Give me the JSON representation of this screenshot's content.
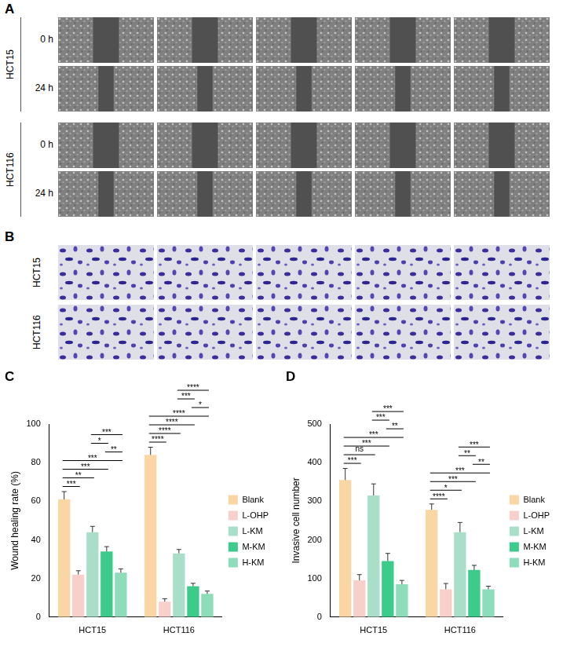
{
  "images": {
    "A": {
      "panel_label": "A",
      "groups": [
        {
          "label": "HCT15",
          "rows": [
            "0 h",
            "24 h"
          ]
        },
        {
          "label": "HCT116",
          "rows": [
            "0 h",
            "24 h"
          ]
        }
      ]
    },
    "B": {
      "panel_label": "B",
      "rows": [
        "HCT15",
        "HCT116"
      ]
    }
  },
  "chart_data": [
    {
      "type": "bar",
      "panel_label": "C",
      "y_label": "Wound healing rate (%)",
      "categories": [
        "HCT15",
        "HCT116"
      ],
      "series": [
        {
          "name": "Blank",
          "color": "#f9d6a3",
          "values": [
            61,
            84
          ],
          "errors": [
            4,
            4
          ]
        },
        {
          "name": "L-OHP",
          "color": "#f7d0cc",
          "values": [
            22,
            8
          ],
          "errors": [
            2,
            1.5
          ]
        },
        {
          "name": "L-KM",
          "color": "#a9dfc8",
          "values": [
            44,
            33
          ],
          "errors": [
            3,
            2
          ]
        },
        {
          "name": "M-KM",
          "color": "#3ccb8a",
          "values": [
            34,
            16
          ],
          "errors": [
            2.5,
            1.5
          ]
        },
        {
          "name": "H-KM",
          "color": "#8edcba",
          "values": [
            23,
            12
          ],
          "errors": [
            2,
            1.5
          ]
        }
      ],
      "ylim": [
        0,
        100
      ],
      "yticks": [
        0,
        20,
        40,
        60,
        80,
        100
      ],
      "grid": false,
      "legend": "right",
      "significance": [
        {
          "category": "HCT15",
          "from": "Blank",
          "to": "L-OHP",
          "label": "***"
        },
        {
          "category": "HCT15",
          "from": "Blank",
          "to": "L-KM",
          "label": "**"
        },
        {
          "category": "HCT15",
          "from": "Blank",
          "to": "M-KM",
          "label": "***"
        },
        {
          "category": "HCT15",
          "from": "Blank",
          "to": "H-KM",
          "label": "***"
        },
        {
          "category": "HCT15",
          "from": "M-KM",
          "to": "H-KM",
          "label": "**"
        },
        {
          "category": "HCT15",
          "from": "L-KM",
          "to": "M-KM",
          "label": "*"
        },
        {
          "category": "HCT15",
          "from": "L-KM",
          "to": "H-KM",
          "label": "***"
        },
        {
          "category": "HCT116",
          "from": "Blank",
          "to": "L-OHP",
          "label": "****"
        },
        {
          "category": "HCT116",
          "from": "Blank",
          "to": "L-KM",
          "label": "****"
        },
        {
          "category": "HCT116",
          "from": "Blank",
          "to": "M-KM",
          "label": "****"
        },
        {
          "category": "HCT116",
          "from": "Blank",
          "to": "H-KM",
          "label": "****"
        },
        {
          "category": "HCT116",
          "from": "M-KM",
          "to": "H-KM",
          "label": "*"
        },
        {
          "category": "HCT116",
          "from": "L-KM",
          "to": "M-KM",
          "label": "***"
        },
        {
          "category": "HCT116",
          "from": "L-KM",
          "to": "H-KM",
          "label": "****"
        }
      ]
    },
    {
      "type": "bar",
      "panel_label": "D",
      "y_label": "Invasive cell number",
      "categories": [
        "HCT15",
        "HCT116"
      ],
      "series": [
        {
          "name": "Blank",
          "color": "#f9d6a3",
          "values": [
            355,
            278
          ],
          "errors": [
            30,
            15
          ]
        },
        {
          "name": "L-OHP",
          "color": "#f7d0cc",
          "values": [
            95,
            72
          ],
          "errors": [
            15,
            15
          ]
        },
        {
          "name": "L-KM",
          "color": "#a9dfc8",
          "values": [
            315,
            220
          ],
          "errors": [
            30,
            25
          ]
        },
        {
          "name": "M-KM",
          "color": "#3ccb8a",
          "values": [
            145,
            122
          ],
          "errors": [
            20,
            12
          ]
        },
        {
          "name": "H-KM",
          "color": "#8edcba",
          "values": [
            85,
            72
          ],
          "errors": [
            10,
            8
          ]
        }
      ],
      "ylim": [
        0,
        500
      ],
      "yticks": [
        0,
        100,
        200,
        300,
        400,
        500
      ],
      "grid": false,
      "legend": "right",
      "significance": [
        {
          "category": "HCT15",
          "from": "Blank",
          "to": "L-OHP",
          "label": "***"
        },
        {
          "category": "HCT15",
          "from": "Blank",
          "to": "L-KM",
          "label": "ns"
        },
        {
          "category": "HCT15",
          "from": "Blank",
          "to": "M-KM",
          "label": "***"
        },
        {
          "category": "HCT15",
          "from": "Blank",
          "to": "H-KM",
          "label": "***"
        },
        {
          "category": "HCT15",
          "from": "M-KM",
          "to": "H-KM",
          "label": "**"
        },
        {
          "category": "HCT15",
          "from": "L-KM",
          "to": "M-KM",
          "label": "***"
        },
        {
          "category": "HCT15",
          "from": "L-KM",
          "to": "H-KM",
          "label": "***"
        },
        {
          "category": "HCT116",
          "from": "Blank",
          "to": "L-OHP",
          "label": "****"
        },
        {
          "category": "HCT116",
          "from": "Blank",
          "to": "L-KM",
          "label": "*"
        },
        {
          "category": "HCT116",
          "from": "Blank",
          "to": "M-KM",
          "label": "***"
        },
        {
          "category": "HCT116",
          "from": "Blank",
          "to": "H-KM",
          "label": "***"
        },
        {
          "category": "HCT116",
          "from": "M-KM",
          "to": "H-KM",
          "label": "**"
        },
        {
          "category": "HCT116",
          "from": "L-KM",
          "to": "M-KM",
          "label": "**"
        },
        {
          "category": "HCT116",
          "from": "L-KM",
          "to": "H-KM",
          "label": "***"
        }
      ]
    }
  ]
}
